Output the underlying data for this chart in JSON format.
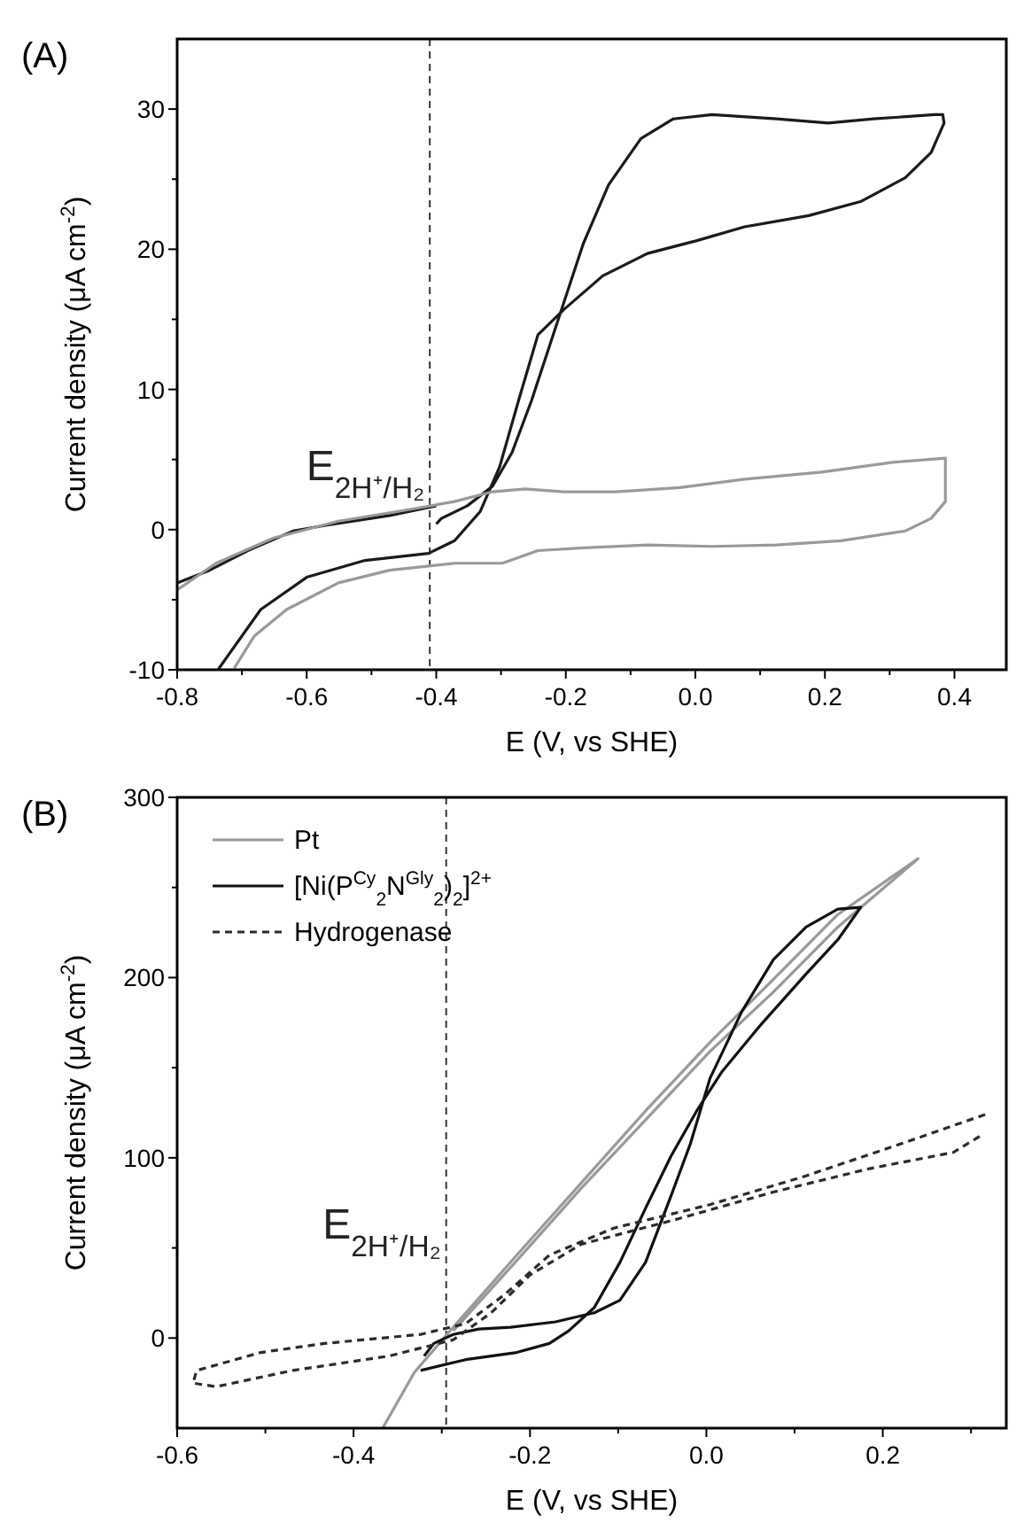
{
  "chart_data": [
    {
      "type": "line",
      "title": "(A)",
      "xlabel": "E (V, vs SHE)",
      "ylabel": "Current density (μA cm$^{-2}$)",
      "xlim": [
        -0.8,
        0.48
      ],
      "ylim": [
        -10,
        35
      ],
      "xticks": [
        -0.8,
        {
          "value": -0.7,
          "label": null
        },
        -0.6,
        {
          "value": -0.5,
          "label": null
        },
        -0.4,
        {
          "value": -0.3,
          "label": null
        },
        -0.2,
        {
          "value": -0.1,
          "label": null
        },
        {
          "value": 0,
          "label": "0.0"
        },
        {
          "value": 0.1,
          "label": null
        },
        0.2,
        {
          "value": 0.3,
          "label": null
        },
        0.4
      ],
      "yticks": [
        -10,
        {
          "value": -5,
          "label": null
        },
        0,
        {
          "value": 5,
          "label": null
        },
        10,
        {
          "value": 15,
          "label": null
        },
        20,
        {
          "value": 25,
          "label": null
        },
        30
      ],
      "ref_lines": [
        {
          "axis": "x",
          "value": -0.41,
          "label": "E$_{2H⁺/H₂}$",
          "line_style": "dashed",
          "color": "#333333"
        }
      ],
      "series": [
        {
          "color": "#1a1a1a",
          "x": [
            -0.4,
            -0.472,
            -0.571,
            -0.621,
            -0.691,
            -0.75,
            -0.8,
            -0.77,
            -0.737,
            -0.671,
            -0.6,
            -0.51,
            -0.412,
            -0.372,
            -0.332,
            -0.302,
            -0.273,
            -0.243,
            -0.203,
            -0.143,
            -0.074,
            0.001,
            0.076,
            0.175,
            0.255,
            0.324,
            0.364,
            0.384,
            0.382,
            0.369,
            0.275,
            0.205,
            0.125,
            0.026,
            -0.034,
            -0.084,
            -0.134,
            -0.173,
            -0.213,
            -0.253,
            -0.283,
            -0.313,
            -0.352,
            -0.392,
            -0.4
          ],
          "values": [
            1.7,
            1.0,
            0.3,
            -0.1,
            -1.5,
            -2.9,
            -3.8,
            null,
            -10,
            -5.7,
            -3.4,
            -2.2,
            -1.7,
            -0.8,
            1.3,
            4.5,
            9.2,
            13.9,
            15.7,
            18.1,
            19.7,
            20.6,
            21.6,
            22.4,
            23.4,
            25.1,
            26.9,
            29.0,
            29.6,
            29.6,
            29.3,
            29.0,
            29.3,
            29.6,
            29.3,
            27.9,
            24.6,
            20.4,
            14.8,
            9.2,
            5.5,
            3.1,
            1.7,
            0.8,
            0.4
          ]
        },
        {
          "color": "#999999",
          "x": [
            -0.8,
            -0.74,
            -0.651,
            -0.551,
            -0.432,
            -0.372,
            -0.313,
            -0.263,
            -0.203,
            -0.123,
            -0.024,
            0.076,
            0.195,
            0.304,
            0.386,
            0.386,
            0.364,
            0.324,
            0.225,
            0.125,
            0.026,
            -0.074,
            -0.173,
            -0.243,
            -0.298,
            -0.372,
            -0.472,
            -0.551,
            -0.631,
            -0.681,
            -0.712
          ],
          "values": [
            -4.3,
            -2.4,
            -0.6,
            0.6,
            1.5,
            2.0,
            2.7,
            2.9,
            2.7,
            2.7,
            3.0,
            3.6,
            4.1,
            4.8,
            5.1,
            2.0,
            0.8,
            -0.1,
            -0.8,
            -1.1,
            -1.2,
            -1.1,
            -1.3,
            -1.5,
            -2.4,
            -2.4,
            -2.9,
            -3.8,
            -5.7,
            -7.6,
            -9.9
          ]
        }
      ]
    },
    {
      "type": "line",
      "title": "(B)",
      "xlabel": "E (V, vs SHE)",
      "ylabel": "Current density (μA cm$^{-2}$)",
      "legend": "top left",
      "xlim": [
        -0.6,
        0.34
      ],
      "ylim": [
        -50,
        300
      ],
      "xticks": [
        -0.6,
        {
          "value": -0.5,
          "label": null
        },
        -0.4,
        {
          "value": -0.3,
          "label": null
        },
        -0.2,
        {
          "value": -0.1,
          "label": null
        },
        {
          "value": 0,
          "label": "0.0"
        },
        {
          "value": 0.1,
          "label": null
        },
        0.2,
        {
          "value": 0.3,
          "label": null
        }
      ],
      "yticks": [
        0,
        {
          "value": 50,
          "label": null
        },
        100,
        {
          "value": 150,
          "label": null
        },
        200,
        {
          "value": 250,
          "label": null
        },
        300
      ],
      "ref_lines": [
        {
          "axis": "x",
          "value": -0.295,
          "label": "E$_{2H⁺/H₂}$",
          "line_style": "dashed",
          "color": "#333333"
        }
      ],
      "series": [
        {
          "name": "Pt",
          "color": "#999999",
          "x": [
            -0.367,
            -0.331,
            -0.287,
            -0.215,
            -0.142,
            -0.069,
            0.004,
            0.076,
            0.149,
            0.24,
            0.149,
            0.076,
            0.004,
            -0.069,
            -0.142,
            -0.215,
            -0.287
          ],
          "values": [
            -50,
            -19,
            6,
            46,
            86,
            126,
            164,
            199,
            235,
            266,
            228,
            192,
            159,
            121,
            83,
            43,
            4
          ]
        },
        {
          "name": "[Ni(P$^{Cy}$$_{2}$N$^{Gly}$$_{2}$)$_{2}$]$^{2+}$",
          "color": "#111111",
          "x": [
            -0.324,
            -0.273,
            -0.215,
            -0.178,
            -0.156,
            -0.127,
            -0.098,
            -0.069,
            -0.04,
            -0.011,
            0.018,
            0.062,
            0.113,
            0.149,
            0.175,
            0.149,
            0.113,
            0.076,
            0.04,
            0.004,
            -0.018,
            -0.04,
            -0.069,
            -0.098,
            -0.127,
            -0.171,
            -0.222,
            -0.258,
            -0.287,
            -0.309,
            -0.32
          ],
          "values": [
            -18,
            -12,
            -8,
            -3,
            4,
            17,
            42,
            72,
            101,
            126,
            148,
            174,
            202,
            221,
            239,
            238,
            228,
            210,
            181,
            144,
            108,
            79,
            42,
            21,
            14,
            9,
            6,
            5,
            2,
            -3,
            -10
          ]
        },
        {
          "name": "Hydrogenase",
          "color": "#2b2b2b",
          "line_style": "dashed",
          "x": [
            0.316,
            0.222,
            0.113,
            0.004,
            -0.105,
            -0.178,
            -0.229,
            -0.273,
            -0.324,
            -0.433,
            -0.505,
            -0.578,
            -0.582,
            -0.556,
            -0.469,
            -0.36,
            -0.287,
            -0.244,
            -0.2,
            -0.142,
            -0.033,
            0.076,
            0.185,
            0.28,
            0.31
          ],
          "values": [
            124,
            108,
            90,
            74,
            61,
            46,
            24,
            8,
            2,
            -3,
            -8,
            -18,
            -25,
            -27,
            -18,
            -10,
            -1,
            14,
            35,
            52,
            66,
            81,
            94,
            103,
            112
          ]
        }
      ]
    }
  ]
}
